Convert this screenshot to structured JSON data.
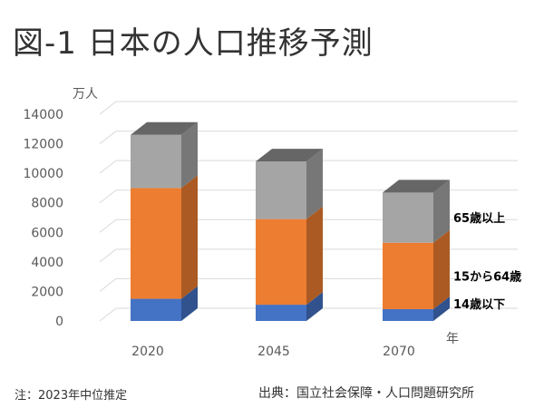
{
  "title": "図-1 日本の人口推移予測",
  "note": "注：2023年中位推定",
  "source": "出典：国立社会保障・人口問題研究所",
  "colors": {
    "under14": "#4472C4",
    "age15to64": "#ED7D31",
    "over65": "#A5A5A5",
    "grid": "#D9D9D9",
    "axis_text": "#595959"
  },
  "chart_data": {
    "type": "bar",
    "stacked": true,
    "three_d": true,
    "title": "図-1 日本の人口推移予測",
    "ylabel": "万人",
    "xlabel": "年",
    "ylim": [
      0,
      14000
    ],
    "yticks": [
      0,
      2000,
      4000,
      6000,
      8000,
      10000,
      12000,
      14000
    ],
    "grid": true,
    "categories": [
      "2020",
      "2045",
      "2070"
    ],
    "series": [
      {
        "name": "14歳以下",
        "values": [
          1500,
          1100,
          800
        ]
      },
      {
        "name": "15から64歳",
        "values": [
          7500,
          5800,
          4500
        ]
      },
      {
        "name": "65歳以上",
        "values": [
          3600,
          3900,
          3400
        ]
      }
    ],
    "legend_position": "right"
  }
}
